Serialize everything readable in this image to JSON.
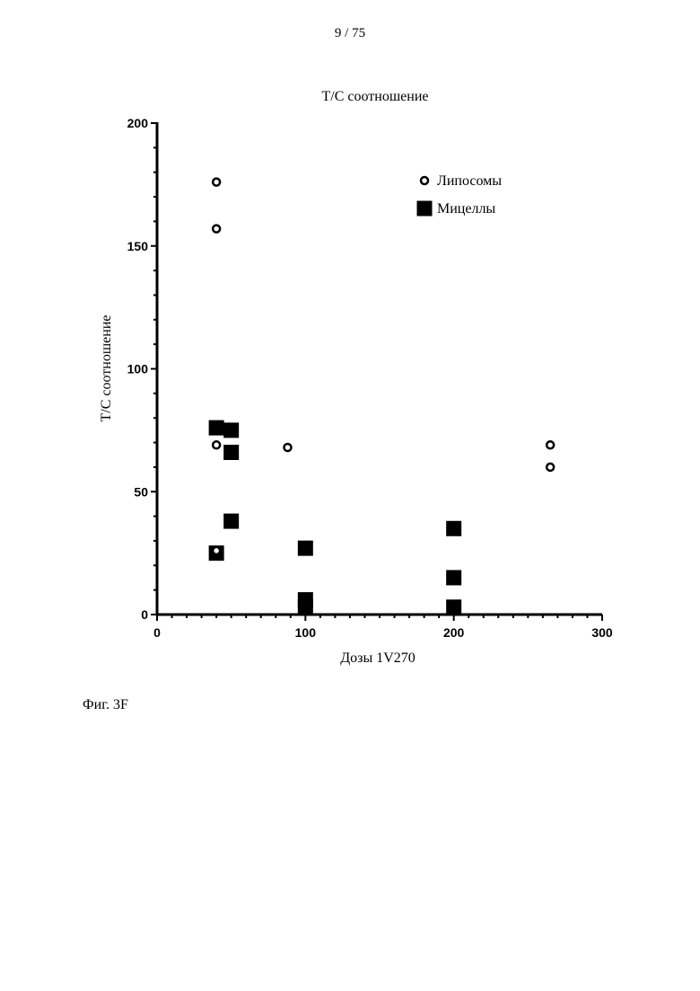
{
  "page": {
    "number": "9 / 75",
    "caption": "Фиг. 3F"
  },
  "chart_data": {
    "type": "scatter",
    "title": "T/C соотношение",
    "xlabel": "Дозы 1V270",
    "ylabel": "T/C соотношение",
    "xlim": [
      0,
      300
    ],
    "ylim": [
      0,
      200
    ],
    "xticks": [
      0,
      100,
      200,
      300
    ],
    "yticks": [
      0,
      50,
      100,
      150,
      200
    ],
    "x_minor_step": 10,
    "y_minor_step": 10,
    "grid": false,
    "legend_position": "top-right",
    "series": [
      {
        "name": "Липосомы",
        "marker": "open-circle",
        "color": "#000000",
        "points": [
          {
            "x": 40,
            "y": 176
          },
          {
            "x": 40,
            "y": 157
          },
          {
            "x": 40,
            "y": 69
          },
          {
            "x": 40,
            "y": 26
          },
          {
            "x": 88,
            "y": 68
          },
          {
            "x": 265,
            "y": 69
          },
          {
            "x": 265,
            "y": 60
          }
        ]
      },
      {
        "name": "Мицеллы",
        "marker": "filled-square",
        "color": "#000000",
        "points": [
          {
            "x": 40,
            "y": 76
          },
          {
            "x": 50,
            "y": 75
          },
          {
            "x": 50,
            "y": 66
          },
          {
            "x": 50,
            "y": 38
          },
          {
            "x": 40,
            "y": 25
          },
          {
            "x": 100,
            "y": 27
          },
          {
            "x": 100,
            "y": 6
          },
          {
            "x": 100,
            "y": 3
          },
          {
            "x": 200,
            "y": 35
          },
          {
            "x": 200,
            "y": 15
          },
          {
            "x": 200,
            "y": 3
          }
        ]
      }
    ]
  }
}
